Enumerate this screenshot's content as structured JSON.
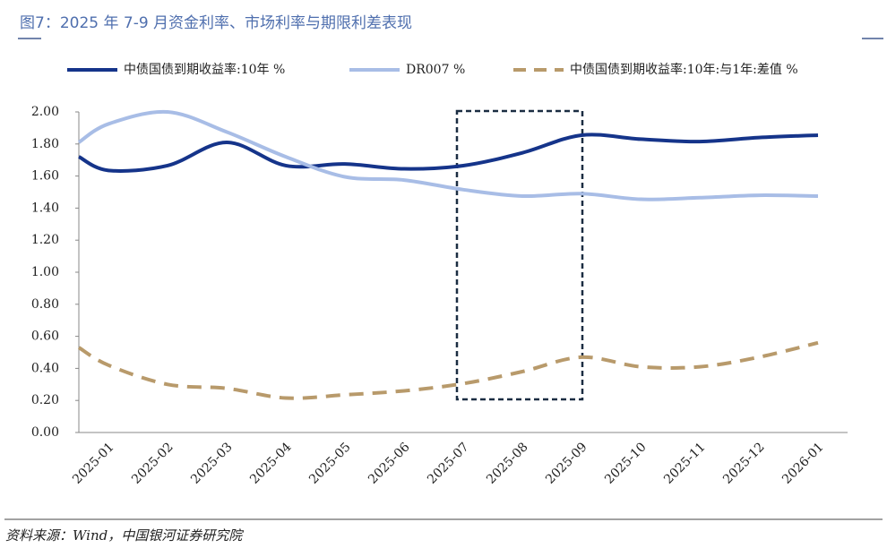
{
  "title": "图7：2025 年 7-9 月资金利率、市场利率与期限利差表现",
  "source": "资料来源：Wind，中国银河证券研究院",
  "chart_data": {
    "type": "line",
    "categories": [
      null,
      "2025-01",
      "2025-02",
      "2025-03",
      "2025-04",
      "2025-05",
      "2025-06",
      "2025-07",
      "2025-08",
      "2025-09",
      "2025-10",
      "2025-11",
      "2025-12",
      "2026-01"
    ],
    "series": [
      {
        "name": "中债国债到期收益率:10年 %",
        "color": "#15348a",
        "dash": false,
        "values": [
          1.72,
          1.635,
          1.665,
          1.81,
          1.665,
          1.675,
          1.645,
          1.665,
          1.745,
          1.855,
          1.83,
          1.815,
          1.84,
          1.855
        ]
      },
      {
        "name": "DR007 %",
        "color": "#a8bde6",
        "dash": false,
        "values": [
          1.81,
          1.925,
          2.0,
          1.875,
          1.72,
          1.595,
          1.575,
          1.515,
          1.475,
          1.49,
          1.455,
          1.465,
          1.48,
          1.475
        ]
      },
      {
        "name": "中债国债到期收益率:10年:与1年:差值 %",
        "color": "#b89a6b",
        "dash": true,
        "values": [
          0.53,
          0.42,
          0.3,
          0.275,
          0.215,
          0.235,
          0.26,
          0.305,
          0.38,
          0.47,
          0.41,
          0.41,
          0.47,
          0.56
        ]
      }
    ],
    "ylim": [
      0,
      2
    ],
    "yticks": [
      {
        "value": 0,
        "label": "0.00"
      },
      {
        "value": 0.2,
        "label": "0.20"
      },
      {
        "value": 0.4,
        "label": "0.40"
      },
      {
        "value": 0.6,
        "label": "0.60"
      },
      {
        "value": 0.8,
        "label": "0.80"
      },
      {
        "value": 1,
        "label": "1.00"
      },
      {
        "value": 1.2,
        "label": "1.20"
      },
      {
        "value": 1.4,
        "label": "1.40"
      },
      {
        "value": 1.6,
        "label": "1.60"
      },
      {
        "value": 1.8,
        "label": "1.80"
      },
      {
        "value": 2,
        "label": "2.00"
      }
    ],
    "grid": false,
    "legend": "top"
  }
}
